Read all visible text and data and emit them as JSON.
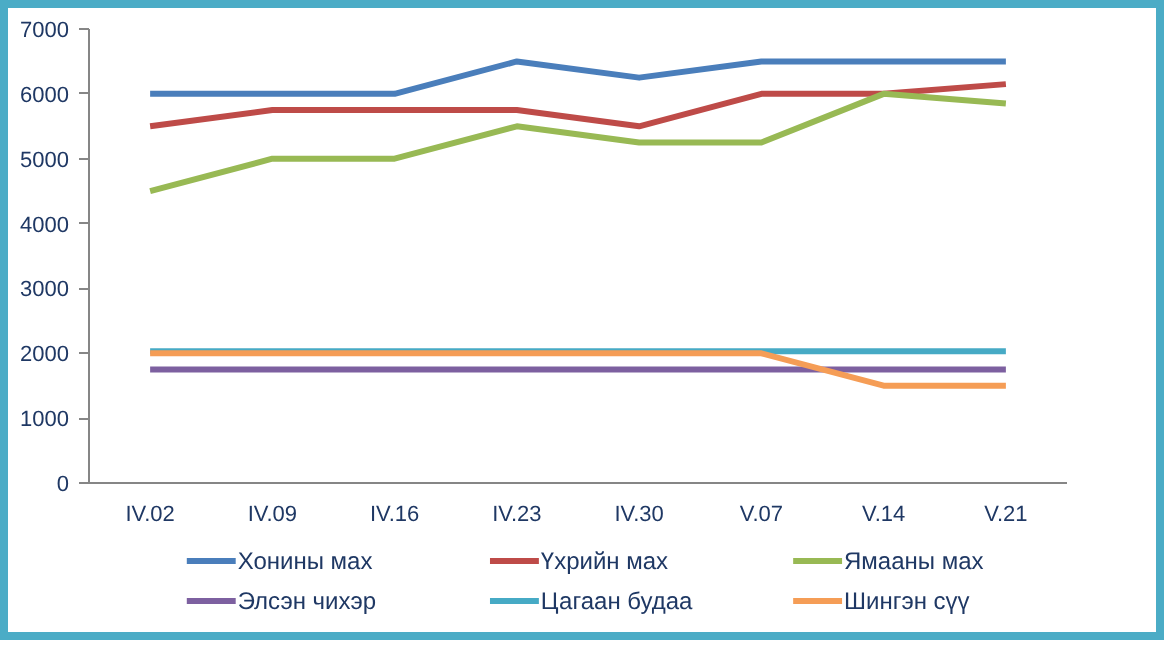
{
  "chart_data": {
    "type": "line",
    "categories": [
      "IV.02",
      "IV.09",
      "IV.16",
      "IV.23",
      "IV.30",
      "V.07",
      "V.14",
      "V.21"
    ],
    "ylim": [
      0,
      7000
    ],
    "yticks": [
      0,
      1000,
      2000,
      3000,
      4000,
      5000,
      6000,
      7000
    ],
    "grid": false,
    "legend": "bottom",
    "marker": "none",
    "line_style": "solid",
    "series": [
      {
        "name": "Хонины мах",
        "color": "#4a7ebb",
        "values": [
          6000,
          6000,
          6000,
          6500,
          6250,
          6500,
          6500,
          6500
        ]
      },
      {
        "name": "Үхрийн мах",
        "color": "#be4b48",
        "values": [
          5500,
          5750,
          5750,
          5750,
          5500,
          6000,
          6000,
          6150
        ]
      },
      {
        "name": "Ямааны мах",
        "color": "#98b954",
        "values": [
          4500,
          5000,
          5000,
          5500,
          5250,
          5250,
          6000,
          5850
        ]
      },
      {
        "name": "Элсэн чихэр",
        "color": "#7d60a0",
        "values": [
          1750,
          1750,
          1750,
          1750,
          1750,
          1750,
          1750,
          1750
        ]
      },
      {
        "name": "Цагаан будаа",
        "color": "#46aac5",
        "values": [
          2030,
          2030,
          2030,
          2030,
          2030,
          2030,
          2030,
          2030
        ]
      },
      {
        "name": "Шингэн сүү",
        "color": "#f59d56",
        "values": [
          2000,
          2000,
          2000,
          2000,
          2000,
          2000,
          1500,
          1500
        ]
      }
    ]
  }
}
